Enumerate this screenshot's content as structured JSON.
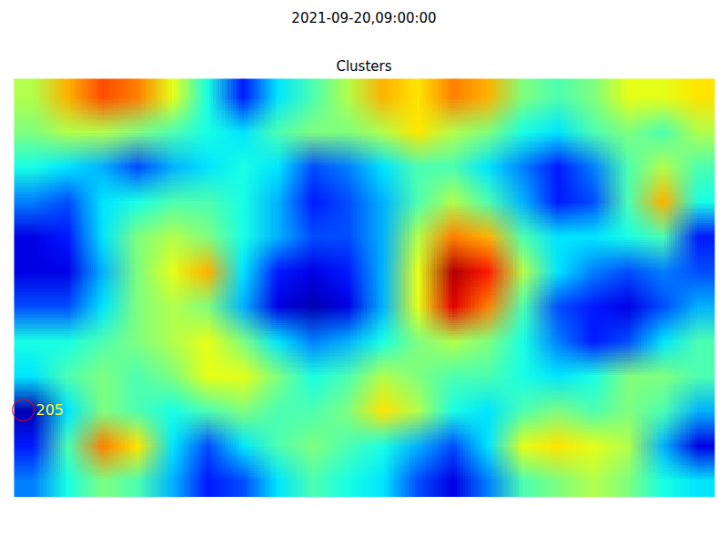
{
  "chart_data": {
    "type": "heatmap",
    "title": "2021-09-20,09:00:00",
    "subtitle": "Clusters",
    "tick_labels": false,
    "xlim": [
      0,
      20
    ],
    "ylim": [
      0,
      12
    ],
    "zlim": [
      0,
      1
    ],
    "cells": [
      [
        0.55,
        0.7,
        0.8,
        0.75,
        0.6,
        0.4,
        0.15,
        0.35,
        0.45,
        0.55,
        0.7,
        0.65,
        0.75,
        0.7,
        0.5,
        0.45,
        0.5,
        0.6,
        0.6,
        0.65
      ],
      [
        0.5,
        0.55,
        0.55,
        0.5,
        0.45,
        0.4,
        0.35,
        0.45,
        0.5,
        0.5,
        0.55,
        0.65,
        0.55,
        0.5,
        0.4,
        0.35,
        0.45,
        0.5,
        0.45,
        0.55
      ],
      [
        0.4,
        0.35,
        0.3,
        0.2,
        0.3,
        0.35,
        0.4,
        0.35,
        0.2,
        0.25,
        0.35,
        0.45,
        0.45,
        0.35,
        0.25,
        0.15,
        0.25,
        0.45,
        0.55,
        0.45
      ],
      [
        0.25,
        0.2,
        0.35,
        0.4,
        0.45,
        0.45,
        0.4,
        0.3,
        0.15,
        0.2,
        0.3,
        0.45,
        0.55,
        0.45,
        0.3,
        0.15,
        0.2,
        0.45,
        0.7,
        0.4
      ],
      [
        0.1,
        0.15,
        0.35,
        0.5,
        0.55,
        0.5,
        0.4,
        0.3,
        0.2,
        0.2,
        0.3,
        0.55,
        0.75,
        0.7,
        0.45,
        0.35,
        0.35,
        0.4,
        0.45,
        0.15
      ],
      [
        0.1,
        0.1,
        0.3,
        0.5,
        0.6,
        0.7,
        0.35,
        0.15,
        0.1,
        0.15,
        0.3,
        0.6,
        0.95,
        0.85,
        0.55,
        0.35,
        0.25,
        0.2,
        0.25,
        0.2
      ],
      [
        0.2,
        0.2,
        0.35,
        0.5,
        0.55,
        0.5,
        0.3,
        0.1,
        0.05,
        0.1,
        0.3,
        0.6,
        0.9,
        0.75,
        0.45,
        0.2,
        0.15,
        0.1,
        0.2,
        0.3
      ],
      [
        0.4,
        0.4,
        0.45,
        0.5,
        0.55,
        0.6,
        0.5,
        0.35,
        0.25,
        0.3,
        0.4,
        0.5,
        0.55,
        0.5,
        0.4,
        0.25,
        0.15,
        0.2,
        0.35,
        0.45
      ],
      [
        0.35,
        0.45,
        0.5,
        0.45,
        0.5,
        0.6,
        0.6,
        0.5,
        0.4,
        0.45,
        0.55,
        0.5,
        0.45,
        0.45,
        0.4,
        0.35,
        0.4,
        0.5,
        0.5,
        0.45
      ],
      [
        0.05,
        0.35,
        0.5,
        0.45,
        0.4,
        0.45,
        0.5,
        0.45,
        0.45,
        0.5,
        0.65,
        0.55,
        0.4,
        0.35,
        0.45,
        0.5,
        0.45,
        0.5,
        0.45,
        0.3
      ],
      [
        0.15,
        0.45,
        0.75,
        0.65,
        0.35,
        0.2,
        0.35,
        0.45,
        0.5,
        0.45,
        0.4,
        0.3,
        0.2,
        0.35,
        0.6,
        0.65,
        0.6,
        0.55,
        0.3,
        0.1
      ],
      [
        0.25,
        0.4,
        0.5,
        0.45,
        0.3,
        0.15,
        0.2,
        0.35,
        0.45,
        0.4,
        0.35,
        0.2,
        0.1,
        0.25,
        0.45,
        0.5,
        0.55,
        0.5,
        0.4,
        0.35
      ]
    ],
    "annotations": [
      {
        "x": 0.26,
        "y": 9.5,
        "text": "205"
      }
    ]
  }
}
